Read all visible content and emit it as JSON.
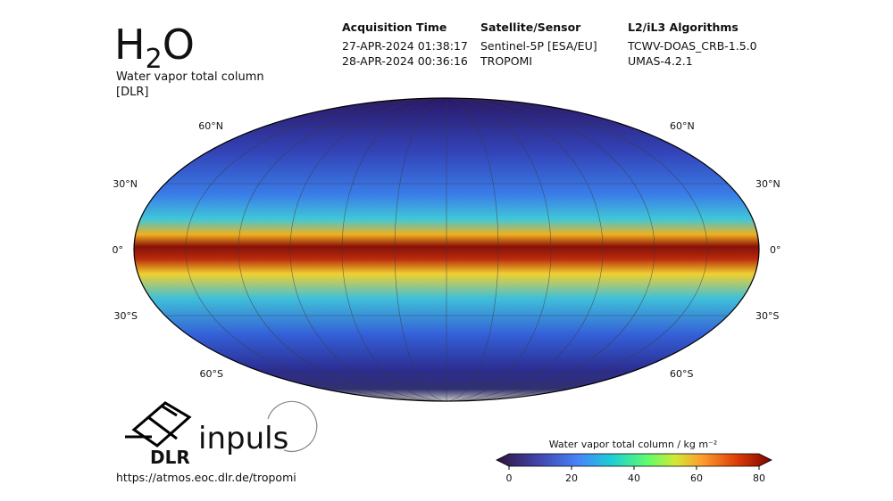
{
  "header": {
    "title": {
      "main": "H",
      "sub": "2",
      "end": "O"
    },
    "subtitle": [
      "Water vapor total column",
      "[DLR]"
    ]
  },
  "info": [
    {
      "heading": "Acquisition Time",
      "lines": [
        "27-APR-2024 01:38:17",
        "28-APR-2024 00:36:16"
      ]
    },
    {
      "heading": "Satellite/Sensor",
      "lines": [
        "Sentinel-5P [ESA/EU]",
        "TROPOMI"
      ]
    },
    {
      "heading": "L2/iL3 Algorithms",
      "lines": [
        "TCWV-DOAS_CRB-1.5.0",
        "UMAS-4.2.1"
      ]
    }
  ],
  "map": {
    "latitude_labels": [
      "60°N",
      "30°N",
      "0°",
      "30°S",
      "60°S"
    ]
  },
  "colorbar": {
    "label": "Water vapor total column / kg m⁻²",
    "lim": [
      0,
      80
    ],
    "ticks": [
      0,
      20,
      40,
      60,
      80
    ]
  },
  "footer": {
    "logo": "DLR",
    "partner": "inpuls",
    "url": "https://atmos.eoc.dlr.de/tropomi"
  }
}
